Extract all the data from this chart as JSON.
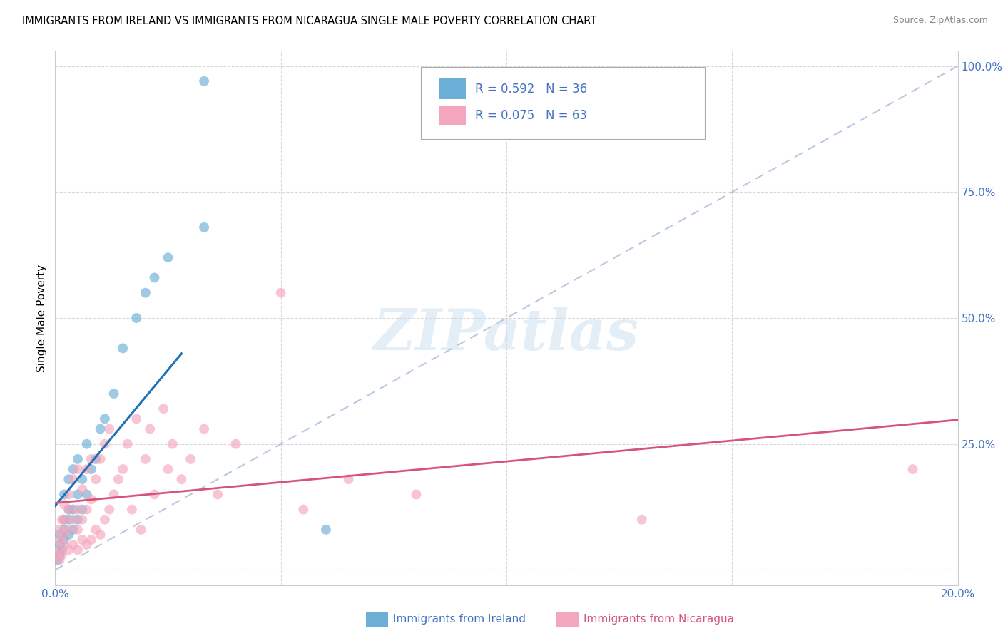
{
  "title": "IMMIGRANTS FROM IRELAND VS IMMIGRANTS FROM NICARAGUA SINGLE MALE POVERTY CORRELATION CHART",
  "source": "Source: ZipAtlas.com",
  "ylabel": "Single Male Poverty",
  "legend_label1": "Immigrants from Ireland",
  "legend_label2": "Immigrants from Nicaragua",
  "R1": 0.592,
  "N1": 36,
  "R2": 0.075,
  "N2": 63,
  "color1": "#6baed6",
  "color2": "#f4a6bc",
  "line_color1": "#2171b5",
  "line_color2": "#d6547a",
  "diagonal_color": "#b0c4de",
  "xmin": 0.0,
  "xmax": 0.2,
  "ymin": 0.0,
  "ymax": 1.0,
  "ireland_x": [
    0.0005,
    0.001,
    0.001,
    0.001,
    0.0015,
    0.002,
    0.002,
    0.002,
    0.002,
    0.003,
    0.003,
    0.003,
    0.003,
    0.004,
    0.004,
    0.004,
    0.005,
    0.005,
    0.005,
    0.006,
    0.006,
    0.007,
    0.007,
    0.008,
    0.009,
    0.01,
    0.011,
    0.013,
    0.015,
    0.018,
    0.02,
    0.022,
    0.025,
    0.033,
    0.033,
    0.06
  ],
  "ireland_y": [
    0.02,
    0.03,
    0.05,
    0.07,
    0.04,
    0.06,
    0.08,
    0.1,
    0.15,
    0.07,
    0.1,
    0.12,
    0.18,
    0.08,
    0.12,
    0.2,
    0.1,
    0.15,
    0.22,
    0.12,
    0.18,
    0.15,
    0.25,
    0.2,
    0.22,
    0.28,
    0.3,
    0.35,
    0.44,
    0.5,
    0.55,
    0.58,
    0.62,
    0.68,
    0.97,
    0.08
  ],
  "nicaragua_x": [
    0.0005,
    0.001,
    0.001,
    0.001,
    0.001,
    0.0015,
    0.0015,
    0.002,
    0.002,
    0.002,
    0.002,
    0.003,
    0.003,
    0.003,
    0.003,
    0.004,
    0.004,
    0.004,
    0.005,
    0.005,
    0.005,
    0.005,
    0.006,
    0.006,
    0.006,
    0.007,
    0.007,
    0.007,
    0.008,
    0.008,
    0.008,
    0.009,
    0.009,
    0.01,
    0.01,
    0.011,
    0.011,
    0.012,
    0.012,
    0.013,
    0.014,
    0.015,
    0.016,
    0.017,
    0.018,
    0.019,
    0.02,
    0.021,
    0.022,
    0.024,
    0.025,
    0.026,
    0.028,
    0.03,
    0.033,
    0.036,
    0.04,
    0.05,
    0.055,
    0.065,
    0.08,
    0.13,
    0.19
  ],
  "nicaragua_y": [
    0.03,
    0.02,
    0.04,
    0.06,
    0.08,
    0.03,
    0.1,
    0.05,
    0.07,
    0.1,
    0.13,
    0.04,
    0.08,
    0.12,
    0.15,
    0.05,
    0.1,
    0.18,
    0.04,
    0.08,
    0.12,
    0.2,
    0.06,
    0.1,
    0.16,
    0.05,
    0.12,
    0.2,
    0.06,
    0.14,
    0.22,
    0.08,
    0.18,
    0.07,
    0.22,
    0.1,
    0.25,
    0.12,
    0.28,
    0.15,
    0.18,
    0.2,
    0.25,
    0.12,
    0.3,
    0.08,
    0.22,
    0.28,
    0.15,
    0.32,
    0.2,
    0.25,
    0.18,
    0.22,
    0.28,
    0.15,
    0.25,
    0.55,
    0.12,
    0.18,
    0.15,
    0.1,
    0.2
  ]
}
